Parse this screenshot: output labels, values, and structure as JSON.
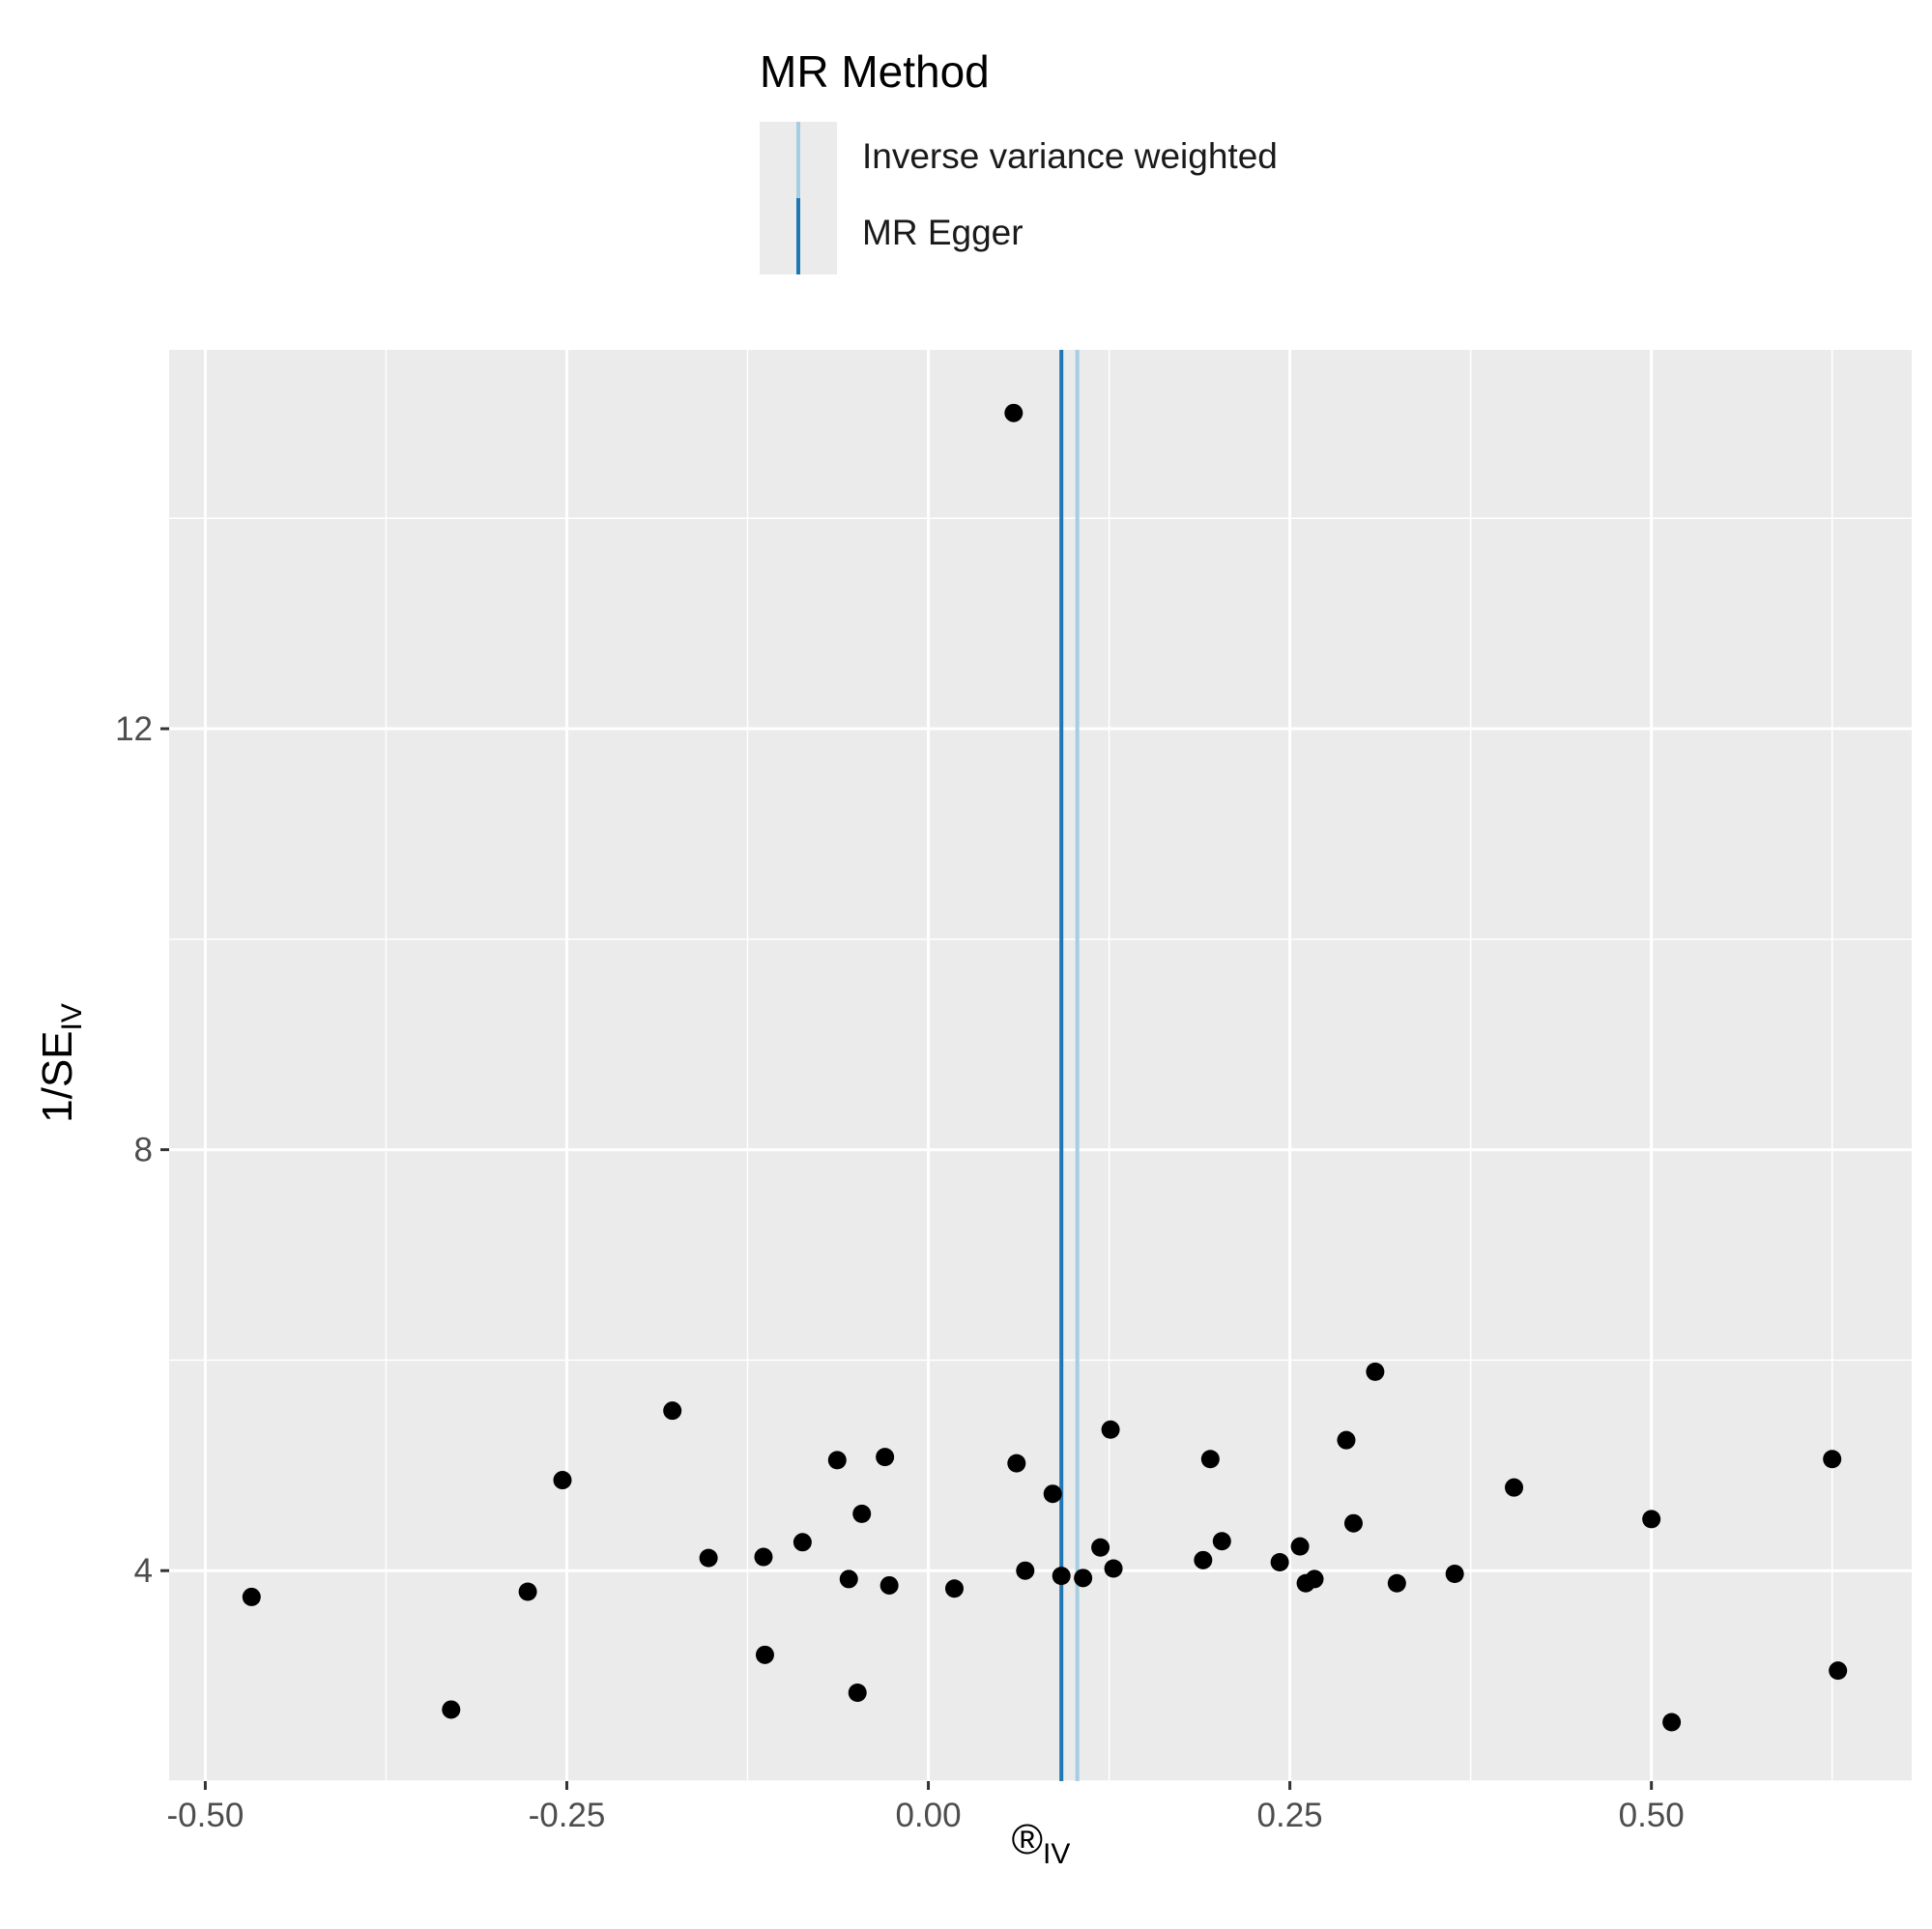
{
  "legend": {
    "title": "MR Method",
    "items": [
      {
        "label": "Inverse variance weighted",
        "color": "#a6cee3"
      },
      {
        "label": "MR Egger",
        "color": "#1f78b4"
      }
    ]
  },
  "chart_data": {
    "type": "scatter",
    "xlabel": {
      "main": "®",
      "sub": "IV"
    },
    "ylabel": {
      "main": "1/SE",
      "sub": "IV"
    },
    "xlim": [
      -0.525,
      0.68
    ],
    "ylim": [
      2.0,
      15.6
    ],
    "xticks": [
      -0.5,
      -0.25,
      0.0,
      0.25,
      0.5
    ],
    "xtick_labels": [
      "-0.50",
      "-0.25",
      "0.00",
      "0.25",
      "0.50"
    ],
    "yticks": [
      4,
      8,
      12
    ],
    "ytick_labels": [
      "4",
      "8",
      "12"
    ],
    "grid": true,
    "legend_position": "top",
    "panel_color": "#ebebeb",
    "point_color": "#000000",
    "vlines": [
      {
        "name": "Inverse variance weighted",
        "x": 0.103,
        "color": "#a6cee3"
      },
      {
        "name": "MR Egger",
        "x": 0.092,
        "color": "#1f78b4"
      }
    ],
    "points": [
      {
        "x": 0.059,
        "y": 15.0
      },
      {
        "x": -0.468,
        "y": 3.75
      },
      {
        "x": -0.33,
        "y": 2.68
      },
      {
        "x": -0.277,
        "y": 3.8
      },
      {
        "x": -0.253,
        "y": 4.86
      },
      {
        "x": -0.177,
        "y": 5.52
      },
      {
        "x": -0.152,
        "y": 4.12
      },
      {
        "x": -0.114,
        "y": 4.13
      },
      {
        "x": -0.113,
        "y": 3.2
      },
      {
        "x": -0.087,
        "y": 4.27
      },
      {
        "x": -0.063,
        "y": 5.05
      },
      {
        "x": -0.055,
        "y": 3.92
      },
      {
        "x": -0.049,
        "y": 2.84
      },
      {
        "x": -0.046,
        "y": 4.54
      },
      {
        "x": -0.03,
        "y": 5.08
      },
      {
        "x": -0.027,
        "y": 3.86
      },
      {
        "x": 0.018,
        "y": 3.83
      },
      {
        "x": 0.061,
        "y": 5.02
      },
      {
        "x": 0.067,
        "y": 4.0
      },
      {
        "x": 0.086,
        "y": 4.73
      },
      {
        "x": 0.092,
        "y": 3.95
      },
      {
        "x": 0.107,
        "y": 3.93
      },
      {
        "x": 0.119,
        "y": 4.22
      },
      {
        "x": 0.126,
        "y": 5.34
      },
      {
        "x": 0.128,
        "y": 4.02
      },
      {
        "x": 0.19,
        "y": 4.1
      },
      {
        "x": 0.195,
        "y": 5.06
      },
      {
        "x": 0.203,
        "y": 4.28
      },
      {
        "x": 0.243,
        "y": 4.08
      },
      {
        "x": 0.257,
        "y": 4.23
      },
      {
        "x": 0.261,
        "y": 3.88
      },
      {
        "x": 0.267,
        "y": 3.92
      },
      {
        "x": 0.289,
        "y": 5.24
      },
      {
        "x": 0.294,
        "y": 4.45
      },
      {
        "x": 0.309,
        "y": 5.89
      },
      {
        "x": 0.324,
        "y": 3.88
      },
      {
        "x": 0.364,
        "y": 3.97
      },
      {
        "x": 0.405,
        "y": 4.79
      },
      {
        "x": 0.5,
        "y": 4.49
      },
      {
        "x": 0.514,
        "y": 2.56
      },
      {
        "x": 0.625,
        "y": 5.06
      },
      {
        "x": 0.629,
        "y": 3.05
      }
    ]
  }
}
